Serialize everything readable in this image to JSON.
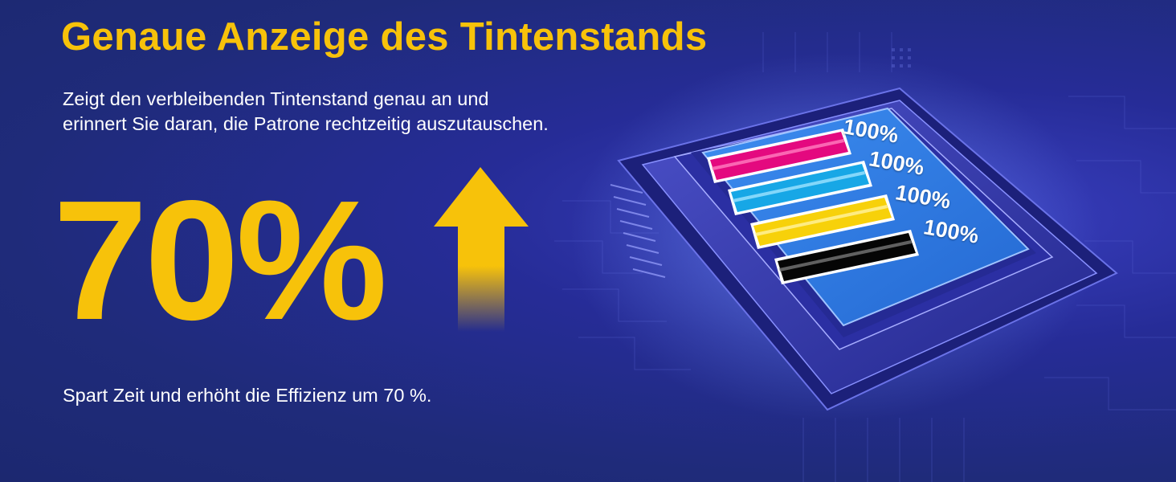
{
  "headline": "Genaue Anzeige des Tintenstands",
  "description": {
    "line1": "Zeigt den verbleibenden Tintenstand genau an und",
    "line2": "erinnert Sie daran, die Patrone rechtzeitig auszutauschen."
  },
  "big_stat": "70%",
  "footnote": "Spart Zeit und erhöht die Effizienz um 70 %.",
  "ink_levels": [
    {
      "color_name": "magenta",
      "color": "#e4097f",
      "label": "100%"
    },
    {
      "color_name": "cyan",
      "color": "#17a7e6",
      "label": "100%"
    },
    {
      "color_name": "yellow",
      "color": "#f7d10a",
      "label": "100%"
    },
    {
      "color_name": "black",
      "color": "#050505",
      "label": "100%"
    }
  ],
  "colors": {
    "accent_yellow": "#f7c20a",
    "background": "#1f2b7a",
    "screen_blue": "#2f7be0"
  },
  "icons": [
    "up-arrow-icon",
    "chip-icon"
  ]
}
